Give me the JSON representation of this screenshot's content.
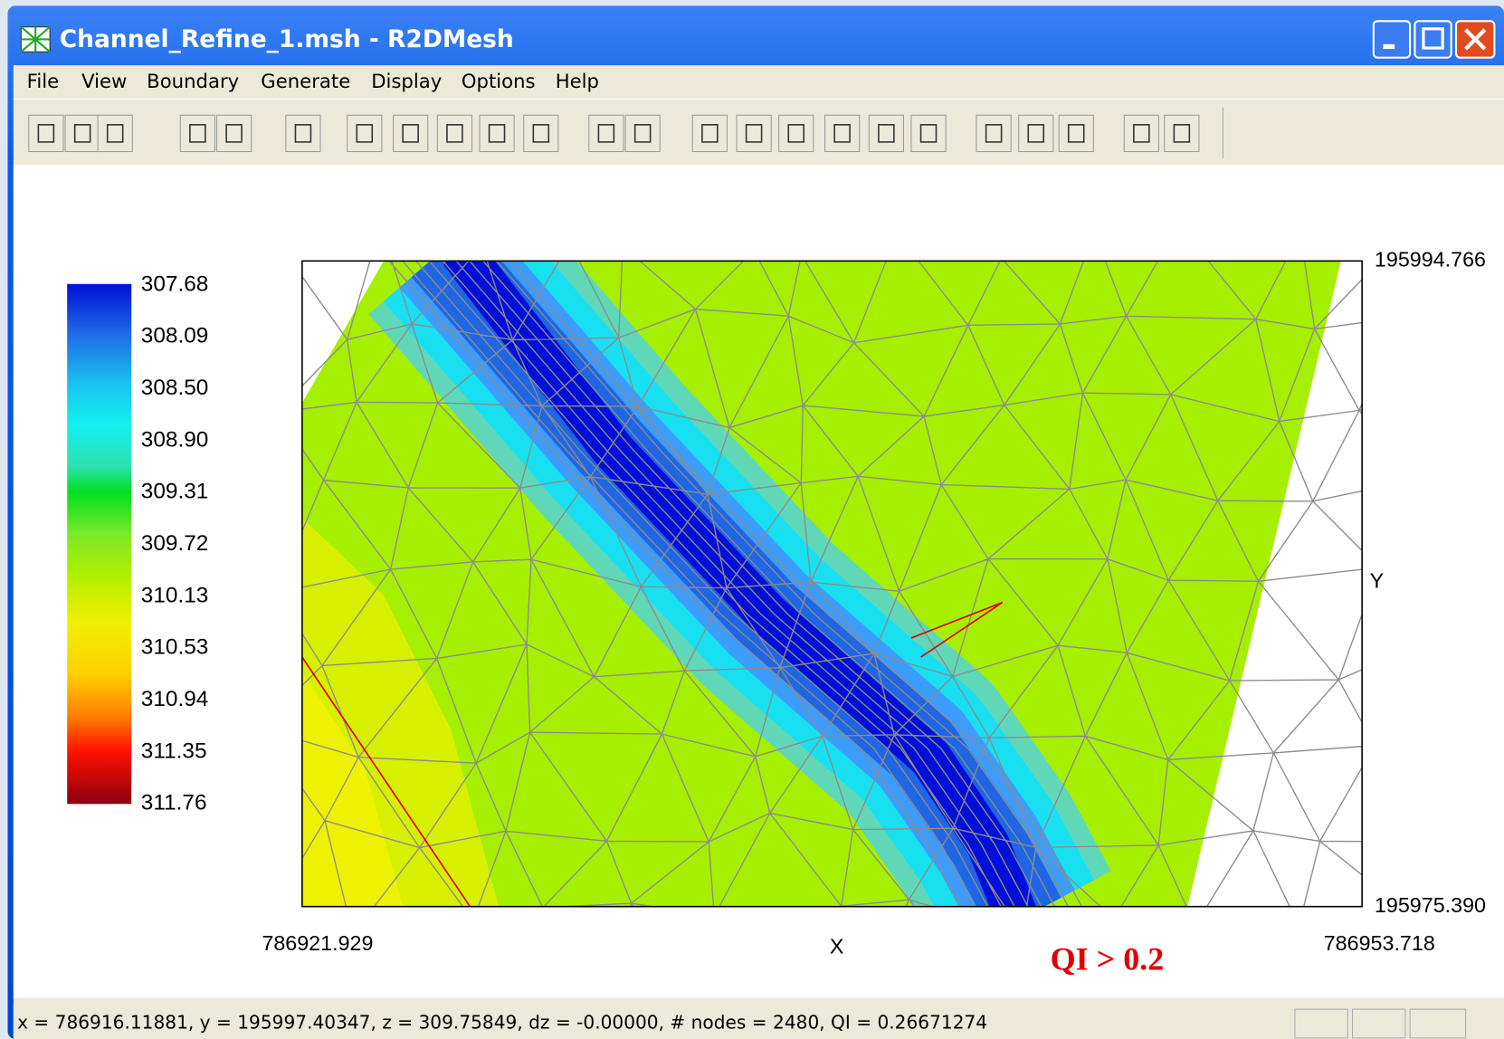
{
  "window": {
    "title": "Channel_Refine_1.msh - R2DMesh"
  },
  "menu": [
    "File",
    "View",
    "Boundary",
    "Generate",
    "Display",
    "Options",
    "Help"
  ],
  "legend": {
    "labels": [
      "307.68",
      "308.09",
      "308.50",
      "308.90",
      "309.31",
      "309.72",
      "310.13",
      "310.53",
      "310.94",
      "311.35",
      "311.76"
    ]
  },
  "plot": {
    "y_max": "195994.766",
    "y_min": "195975.390",
    "x_min": "786921.929",
    "x_max": "786953.718",
    "x_axis": "X",
    "y_axis": "Y"
  },
  "annotation": "QI > 0.2",
  "status_bar": "x = 786916.11881, y = 195997.40347, z = 309.75849, dz = -0.00000, # nodes = 2480, QI = 0.26671274"
}
